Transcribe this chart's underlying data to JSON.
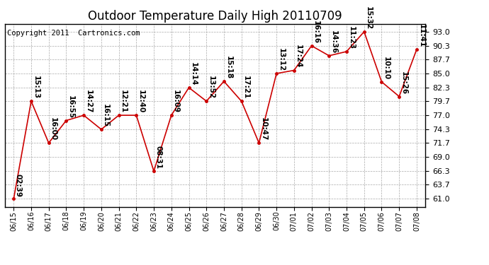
{
  "title": "Outdoor Temperature Daily High 20110709",
  "copyright": "Copyright 2011  Cartronics.com",
  "x_labels": [
    "06/15",
    "06/16",
    "06/17",
    "06/18",
    "06/19",
    "06/20",
    "06/21",
    "06/22",
    "06/23",
    "06/24",
    "06/25",
    "06/26",
    "06/27",
    "06/28",
    "06/29",
    "06/30",
    "07/01",
    "07/02",
    "07/03",
    "07/04",
    "07/05",
    "07/06",
    "07/07",
    "07/08"
  ],
  "y_values": [
    61.0,
    79.7,
    71.7,
    76.0,
    77.0,
    74.3,
    77.0,
    77.0,
    66.3,
    77.0,
    82.3,
    79.7,
    83.5,
    79.7,
    71.7,
    85.0,
    85.6,
    90.3,
    88.4,
    89.2,
    93.0,
    83.4,
    80.6,
    89.6
  ],
  "annotations": [
    "02:39",
    "15:13",
    "16:00",
    "16:55",
    "14:27",
    "16:15",
    "12:21",
    "12:40",
    "08:31",
    "16:09",
    "14:14",
    "13:52",
    "15:18",
    "17:21",
    "10:47",
    "13:12",
    "17:24",
    "16:16",
    "14:36",
    "11:23",
    "15:32",
    "10:10",
    "15:26",
    "11:41"
  ],
  "y_ticks": [
    61.0,
    63.7,
    66.3,
    69.0,
    71.7,
    74.3,
    77.0,
    79.7,
    82.3,
    85.0,
    87.7,
    90.3,
    93.0
  ],
  "line_color": "#cc0000",
  "marker_color": "#cc0000",
  "bg_color": "#ffffff",
  "grid_color": "#aaaaaa",
  "title_fontsize": 12,
  "annotation_fontsize": 7.5,
  "copyright_fontsize": 7.5
}
